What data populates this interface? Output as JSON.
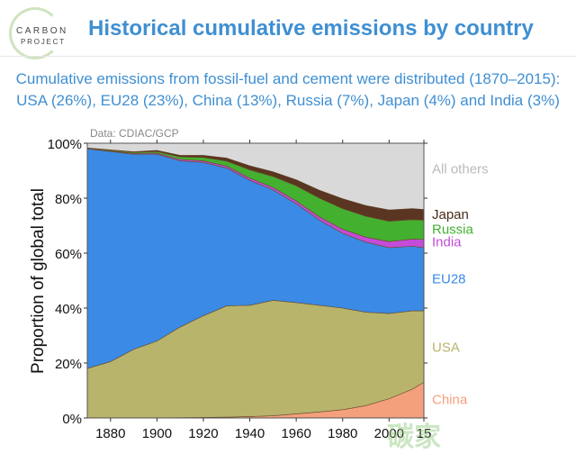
{
  "header": {
    "logo_line1": "CARBON",
    "logo_line2": "PROJECT",
    "title": "Historical cumulative emissions by country"
  },
  "subtitle": {
    "line1": "Cumulative emissions from fossil-fuel and cement were distributed (1870–2015):",
    "line2": "USA (26%), EU28 (23%), China (13%), Russia (7%), Japan (4%) and India (3%)"
  },
  "watermark": "碳家",
  "chart_data": {
    "type": "area",
    "stacked": true,
    "source": "Data: CDIAC/GCP",
    "ylabel": "Proportion of global total",
    "xlim": [
      1870,
      2015
    ],
    "ylim": [
      0,
      100
    ],
    "x": [
      1870,
      1880,
      1890,
      1900,
      1910,
      1920,
      1930,
      1940,
      1950,
      1960,
      1970,
      1980,
      1990,
      2000,
      2010,
      2015
    ],
    "xticks": [
      "1880",
      "1900",
      "1920",
      "1940",
      "1960",
      "1980",
      "2000",
      "15"
    ],
    "xtick_values": [
      1880,
      1900,
      1920,
      1940,
      1960,
      1980,
      2000,
      2015
    ],
    "yticks": [
      "0%",
      "20%",
      "40%",
      "60%",
      "80%",
      "100%"
    ],
    "series": [
      {
        "name": "China",
        "color": "#f4a07c",
        "values": [
          0,
          0,
          0,
          0,
          0.1,
          0.2,
          0.3,
          0.5,
          0.8,
          1.5,
          2.2,
          3,
          4.5,
          7,
          10.5,
          13
        ]
      },
      {
        "name": "USA",
        "color": "#b8b46c",
        "values": [
          18,
          20.5,
          25,
          28,
          33,
          37,
          40.5,
          40.5,
          42,
          40.5,
          38.8,
          37,
          34,
          31,
          28.5,
          26
        ]
      },
      {
        "name": "EU28",
        "color": "#3a8ae6",
        "values": [
          80,
          76.5,
          71,
          68,
          60.5,
          55.8,
          50.2,
          45.5,
          40.2,
          36,
          31,
          27.2,
          25.5,
          24,
          23.5,
          23
        ]
      },
      {
        "name": "India",
        "color": "#c44cd8",
        "values": [
          0.1,
          0.2,
          0.3,
          0.4,
          0.5,
          0.6,
          0.7,
          0.8,
          0.9,
          1.0,
          1.2,
          1.5,
          1.8,
          2.2,
          2.6,
          3
        ]
      },
      {
        "name": "Russia",
        "color": "#44b030",
        "values": [
          0.2,
          0.3,
          0.4,
          0.6,
          0.9,
          1.2,
          1.8,
          3,
          4,
          5.5,
          6.8,
          7.5,
          7.6,
          7.4,
          7.1,
          7
        ]
      },
      {
        "name": "Japan",
        "color": "#5a3622",
        "values": [
          0.1,
          0.2,
          0.3,
          0.5,
          0.7,
          0.9,
          1.2,
          1.6,
          1.8,
          2.3,
          3,
          3.7,
          4,
          4.2,
          4.1,
          4
        ]
      },
      {
        "name": "All others",
        "color": "#d9d9d9",
        "values": [
          1.6,
          2.3,
          3,
          2.5,
          4.3,
          4.3,
          5.3,
          8.1,
          10.3,
          13.2,
          17,
          20.1,
          22.6,
          24.2,
          23.7,
          24
        ]
      }
    ],
    "labels": [
      {
        "name": "All others",
        "color": "#bbbbbb",
        "value": 91
      },
      {
        "name": "Japan",
        "color": "#4a2c18",
        "value": 74.5
      },
      {
        "name": "Russia",
        "color": "#44b030",
        "value": 69
      },
      {
        "name": "India",
        "color": "#c44cd8",
        "value": 64.5
      },
      {
        "name": "EU28",
        "color": "#3a8ae6",
        "value": 51
      },
      {
        "name": "USA",
        "color": "#b8b46c",
        "value": 26
      },
      {
        "name": "China",
        "color": "#f4a07c",
        "value": 7
      }
    ]
  }
}
